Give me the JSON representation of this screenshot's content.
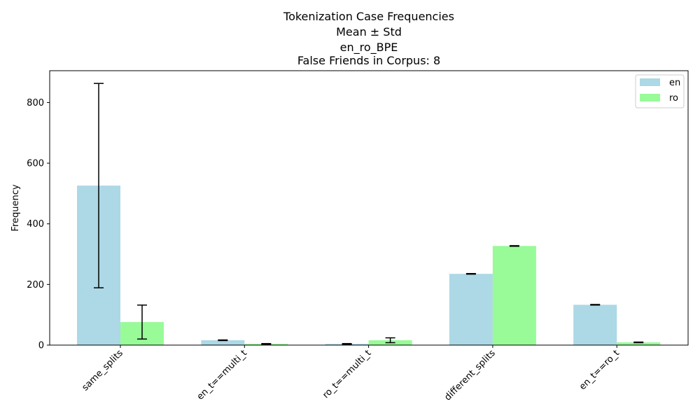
{
  "chart_data": {
    "type": "bar",
    "title_lines": [
      "Tokenization Case Frequencies",
      "Mean ± Std",
      "en_ro_BPE",
      "False Friends in Corpus: 8"
    ],
    "xlabel": "",
    "ylabel": "Frequency",
    "categories": [
      "same_splits",
      "en_t==multi_t",
      "ro_t==multi_t",
      "different_splits",
      "en_t==ro_t"
    ],
    "series": [
      {
        "name": "en",
        "color": "#add8e6",
        "values": [
          526,
          16,
          4,
          235,
          133
        ],
        "errors": [
          337,
          1,
          1,
          1,
          1
        ]
      },
      {
        "name": "ro",
        "color": "#98fb98",
        "values": [
          76,
          4,
          16,
          327,
          9
        ],
        "errors": [
          56,
          1,
          8,
          1,
          1
        ]
      }
    ],
    "yticks": [
      0,
      200,
      400,
      600,
      800
    ],
    "ylim": [
      0,
      905
    ],
    "legend_position": "top-right",
    "grid": false
  }
}
